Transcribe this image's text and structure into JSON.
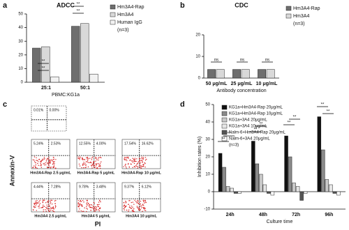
{
  "chart_data": [
    {
      "type": "bar",
      "panel": "a",
      "title": "ADCC",
      "x_label": "PBMC:KG1a",
      "categories": [
        "25:1",
        "50:1"
      ],
      "series": [
        {
          "name": "Hm3A4-Rap",
          "color": "#6e6e6e",
          "values": [
            25,
            41
          ]
        },
        {
          "name": "Hm3A4",
          "color": "#d9d9d9",
          "values": [
            26,
            43
          ]
        },
        {
          "name": "Human IgG",
          "color": "#f2f2f2",
          "values": [
            4,
            6
          ]
        }
      ],
      "ylim": [
        0,
        50
      ],
      "yticks": [
        0,
        10,
        20,
        30,
        40,
        50
      ],
      "legend_note": "(n=3)",
      "annotations": [
        "**",
        "**",
        "**",
        "**"
      ]
    },
    {
      "type": "bar",
      "panel": "b",
      "title": "CDC",
      "x_label": "Antibody concentration",
      "categories": [
        "50 μg/mL",
        "25 μg/mL",
        "10 μg/mL"
      ],
      "series": [
        {
          "name": "Hm3A4-Rap",
          "color": "#6e6e6e",
          "values": [
            4,
            4,
            4
          ]
        },
        {
          "name": "Hm3A4",
          "color": "#d9d9d9",
          "values": [
            4,
            4,
            4
          ]
        }
      ],
      "ylim": [
        0,
        20
      ],
      "yticks": [
        0,
        10,
        20
      ],
      "legend_note": "(n=3)",
      "annotations": [
        "ns",
        "ns",
        "ns"
      ]
    },
    {
      "type": "flow",
      "panel": "c",
      "x_label": "PI",
      "y_label": "Annexin-V",
      "plots": [
        {
          "values": [
            0.01,
            0.0
          ],
          "value_labels": [
            "0.01%",
            "0.00%"
          ]
        },
        {
          "label": "Hm3A4-Rap 2.5 μg/mL",
          "values": [
            5.24,
            2.53
          ],
          "value_labels": [
            "5.24%",
            "2.53%"
          ]
        },
        {
          "label": "Hm3A4-Rap 5 μg/mL",
          "values": [
            12.55,
            4.0
          ],
          "value_labels": [
            "12.55%",
            "4.00%"
          ]
        },
        {
          "label": "Hm3A4-Rap 10 μg/mL",
          "values": [
            17.54,
            16.62
          ],
          "value_labels": [
            "17.54%",
            "16.62%"
          ]
        },
        {
          "label": "Hm3A4 2.5 μg/mL",
          "values": [
            4.44,
            7.28
          ],
          "value_labels": [
            "4.44%",
            "7.28%"
          ]
        },
        {
          "label": "Hm3A4 5 μg/mL",
          "values": [
            9.78,
            3.48
          ],
          "value_labels": [
            "9.78%",
            "3.48%"
          ]
        },
        {
          "label": "Hm3A4 10 μg/mL",
          "values": [
            9.37,
            6.12
          ],
          "value_labels": [
            "9.37%",
            "6.12%"
          ]
        }
      ]
    },
    {
      "type": "bar",
      "panel": "d",
      "x_label": "Culture time",
      "y_label": "Inhibition rates (%)",
      "categories": [
        "24h",
        "48h",
        "72h",
        "96h"
      ],
      "series": [
        {
          "name": "KG1a+Hm3A4-Rap 20μg/mL",
          "color": "#111111",
          "values": [
            22,
            29,
            32,
            43
          ]
        },
        {
          "name": "KG1a+Hm3A4-Rap 10μg/mL",
          "color": "#8a8a8a",
          "values": [
            14,
            16,
            20,
            24
          ]
        },
        {
          "name": "KG1a+3A4 20μg/mL",
          "color": "#c8c8c8",
          "values": [
            3,
            10,
            5,
            7
          ]
        },
        {
          "name": "KG1a+3A4 10μg/mL",
          "color": "#e6e6e6",
          "values": [
            2,
            4,
            3,
            4
          ]
        },
        {
          "name": "Nalm-6+Hm3A4-Rap 20μg/mL",
          "color": "#555555",
          "values": [
            -1,
            -1,
            -5,
            -1
          ]
        },
        {
          "name": "Nalm-6+3A4 20μg/mL",
          "color": "#ffffff",
          "values": [
            -1,
            -2,
            -1,
            -2
          ]
        }
      ],
      "ylim": [
        -10,
        50
      ],
      "yticks": [
        -10,
        0,
        10,
        20,
        30,
        40,
        50
      ],
      "legend_note": "(n=3)",
      "annotations": [
        "**",
        "**",
        "**",
        "**",
        "**",
        "**",
        "**",
        "**"
      ]
    }
  ]
}
